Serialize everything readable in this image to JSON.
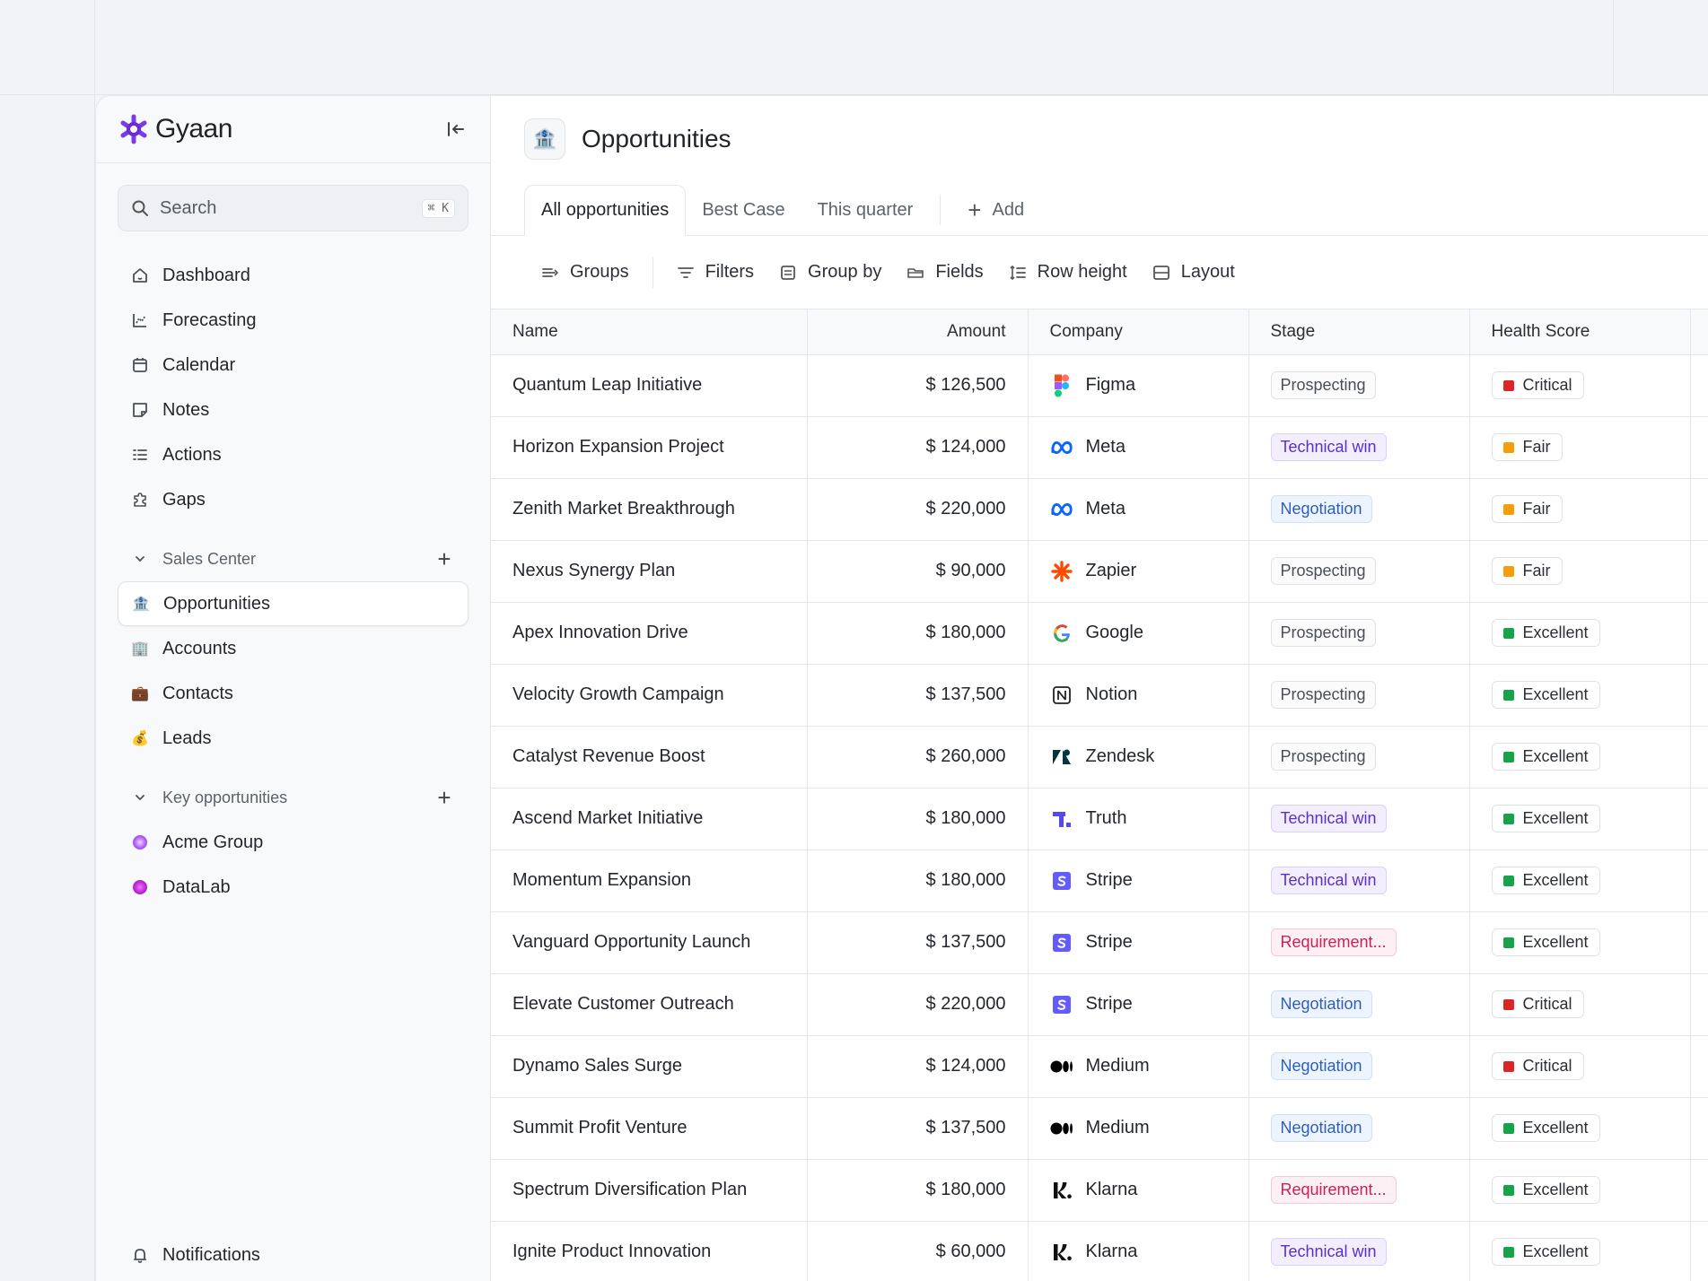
{
  "app": {
    "brand_name": "Gyaan",
    "brand_color": "#7c3aed"
  },
  "sidebar": {
    "search": {
      "label": "Search",
      "shortcut": "⌘ K"
    },
    "nav": [
      {
        "label": "Dashboard",
        "icon": "home-icon"
      },
      {
        "label": "Forecasting",
        "icon": "chart-icon"
      },
      {
        "label": "Calendar",
        "icon": "calendar-icon"
      },
      {
        "label": "Notes",
        "icon": "note-icon"
      },
      {
        "label": "Actions",
        "icon": "list-icon"
      },
      {
        "label": "Gaps",
        "icon": "puzzle-icon"
      }
    ],
    "sales_center": {
      "title": "Sales Center",
      "items": [
        {
          "label": "Opportunities",
          "icon": "bank-icon",
          "active": true
        },
        {
          "label": "Accounts",
          "icon": "building-icon"
        },
        {
          "label": "Contacts",
          "icon": "briefcase-icon"
        },
        {
          "label": "Leads",
          "icon": "money-bag-icon"
        }
      ]
    },
    "key_opportunities": {
      "title": "Key opportunities",
      "items": [
        {
          "label": "Acme Group",
          "color": "#a855f7"
        },
        {
          "label": "DataLab",
          "color": "#c026d3"
        }
      ]
    },
    "notifications_label": "Notifications"
  },
  "main": {
    "title": "Opportunities",
    "tabs": [
      {
        "label": "All opportunities",
        "active": true
      },
      {
        "label": "Best Case"
      },
      {
        "label": "This quarter"
      }
    ],
    "add_tab_label": "Add",
    "toolbar": {
      "groups": "Groups",
      "filters": "Filters",
      "group_by": "Group by",
      "fields": "Fields",
      "row_height": "Row height",
      "layout": "Layout"
    },
    "table": {
      "columns": [
        "Name",
        "Amount",
        "Company",
        "Stage",
        "Health Score"
      ],
      "rows": [
        {
          "name": "Quantum Leap Initiative",
          "amount": "$ 126,500",
          "company": "Figma",
          "stage": "Prospecting",
          "health": "Critical"
        },
        {
          "name": "Horizon Expansion Project",
          "amount": "$ 124,000",
          "company": "Meta",
          "stage": "Technical win",
          "health": "Fair"
        },
        {
          "name": "Zenith Market Breakthrough",
          "amount": "$ 220,000",
          "company": "Meta",
          "stage": "Negotiation",
          "health": "Fair"
        },
        {
          "name": "Nexus Synergy Plan",
          "amount": "$ 90,000",
          "company": "Zapier",
          "stage": "Prospecting",
          "health": "Fair"
        },
        {
          "name": "Apex Innovation Drive",
          "amount": "$ 180,000",
          "company": "Google",
          "stage": "Prospecting",
          "health": "Excellent"
        },
        {
          "name": "Velocity Growth Campaign",
          "amount": "$ 137,500",
          "company": "Notion",
          "stage": "Prospecting",
          "health": "Excellent"
        },
        {
          "name": "Catalyst Revenue Boost",
          "amount": "$ 260,000",
          "company": "Zendesk",
          "stage": "Prospecting",
          "health": "Excellent"
        },
        {
          "name": "Ascend Market Initiative",
          "amount": "$ 180,000",
          "company": "Truth",
          "stage": "Technical win",
          "health": "Excellent"
        },
        {
          "name": "Momentum Expansion",
          "amount": "$ 180,000",
          "company": "Stripe",
          "stage": "Technical win",
          "health": "Excellent"
        },
        {
          "name": "Vanguard Opportunity Launch",
          "amount": "$ 137,500",
          "company": "Stripe",
          "stage": "Requirement...",
          "health": "Excellent"
        },
        {
          "name": "Elevate Customer Outreach",
          "amount": "$ 220,000",
          "company": "Stripe",
          "stage": "Negotiation",
          "health": "Critical"
        },
        {
          "name": "Dynamo Sales Surge",
          "amount": "$ 124,000",
          "company": "Medium",
          "stage": "Negotiation",
          "health": "Critical"
        },
        {
          "name": "Summit Profit Venture",
          "amount": "$ 137,500",
          "company": "Medium",
          "stage": "Negotiation",
          "health": "Excellent"
        },
        {
          "name": "Spectrum Diversification Plan",
          "amount": "$ 180,000",
          "company": "Klarna",
          "stage": "Requirement...",
          "health": "Excellent"
        },
        {
          "name": "Ignite Product Innovation",
          "amount": "$ 60,000",
          "company": "Klarna",
          "stage": "Technical win",
          "health": "Excellent"
        }
      ]
    }
  },
  "colors": {
    "critical": "#dc2626",
    "fair": "#f59e0b",
    "excellent": "#16a34a"
  }
}
